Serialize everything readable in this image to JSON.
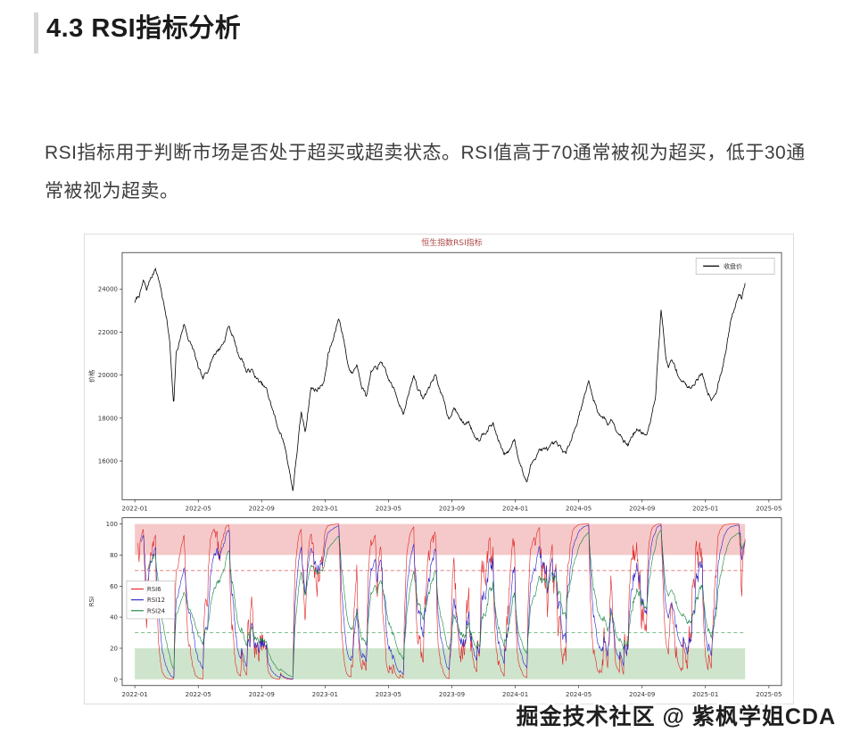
{
  "page": {
    "heading": "4.3 RSI指标分析",
    "paragraph": "RSI指标用于判断市场是否处于超买或超卖状态。RSI值高于70通常被视为超买，低于30通常被视为超卖。",
    "watermark": "掘金技术社区 @ 紫枫学姐CDA"
  },
  "chart_data": {
    "type": "line",
    "title": "恒生指数RSI指标",
    "title_color": "#b04848",
    "seed": 7,
    "noise_amp": 150,
    "xticks": [
      "2022-01",
      "2022-05",
      "2022-09",
      "2023-01",
      "2023-05",
      "2023-09",
      "2024-01",
      "2024-05",
      "2024-09",
      "2025-01",
      "2025-05"
    ],
    "xlim_months": [
      -0.8,
      40.8
    ],
    "panels": [
      {
        "name": "price",
        "ylabel": "价格",
        "ylim": [
          14200,
          25700
        ],
        "yticks": [
          16000,
          18000,
          20000,
          22000,
          24000
        ],
        "legend": [
          {
            "label": "收盘价",
            "color": "#000000"
          }
        ],
        "series": [
          {
            "name": "收盘价",
            "color": "#000000",
            "anchors": [
              [
                0,
                23400
              ],
              [
                0.3,
                23750
              ],
              [
                0.55,
                24350
              ],
              [
                0.75,
                23950
              ],
              [
                1.0,
                24550
              ],
              [
                1.3,
                24950
              ],
              [
                1.5,
                24500
              ],
              [
                1.75,
                23550
              ],
              [
                2.0,
                22750
              ],
              [
                2.2,
                21500
              ],
              [
                2.45,
                18450
              ],
              [
                2.6,
                20950
              ],
              [
                2.85,
                21650
              ],
              [
                3.1,
                22400
              ],
              [
                3.4,
                21650
              ],
              [
                3.7,
                21150
              ],
              [
                4.0,
                20300
              ],
              [
                4.3,
                19750
              ],
              [
                4.65,
                20350
              ],
              [
                5.0,
                21000
              ],
              [
                5.35,
                21250
              ],
              [
                5.65,
                21600
              ],
              [
                5.9,
                22300
              ],
              [
                6.2,
                21800
              ],
              [
                6.5,
                21000
              ],
              [
                6.8,
                20700
              ],
              [
                7.05,
                20150
              ],
              [
                7.35,
                20250
              ],
              [
                7.7,
                19800
              ],
              [
                8.0,
                19550
              ],
              [
                8.3,
                19300
              ],
              [
                8.6,
                18600
              ],
              [
                8.9,
                17850
              ],
              [
                9.2,
                17250
              ],
              [
                9.5,
                16600
              ],
              [
                9.8,
                15350
              ],
              [
                9.97,
                14650
              ],
              [
                10.2,
                16250
              ],
              [
                10.5,
                18200
              ],
              [
                10.75,
                17350
              ],
              [
                11.1,
                19400
              ],
              [
                11.5,
                19300
              ],
              [
                11.95,
                19750
              ],
              [
                12.2,
                21000
              ],
              [
                12.5,
                21600
              ],
              [
                12.87,
                22650
              ],
              [
                13.15,
                21800
              ],
              [
                13.45,
                20450
              ],
              [
                13.7,
                20100
              ],
              [
                14.0,
                20500
              ],
              [
                14.3,
                19650
              ],
              [
                14.6,
                19050
              ],
              [
                14.9,
                20100
              ],
              [
                15.25,
                20300
              ],
              [
                15.6,
                20600
              ],
              [
                15.9,
                19900
              ],
              [
                16.2,
                19550
              ],
              [
                16.55,
                18950
              ],
              [
                16.97,
                18250
              ],
              [
                17.3,
                19150
              ],
              [
                17.6,
                20000
              ],
              [
                17.9,
                19300
              ],
              [
                18.2,
                18900
              ],
              [
                18.55,
                19400
              ],
              [
                18.97,
                20050
              ],
              [
                19.3,
                19200
              ],
              [
                19.8,
                17980
              ],
              [
                20.1,
                18500
              ],
              [
                20.45,
                18100
              ],
              [
                20.75,
                17700
              ],
              [
                21.05,
                17850
              ],
              [
                21.4,
                17250
              ],
              [
                21.7,
                17050
              ],
              [
                22.0,
                17350
              ],
              [
                22.35,
                17600
              ],
              [
                22.6,
                17750
              ],
              [
                22.9,
                17050
              ],
              [
                23.3,
                16250
              ],
              [
                23.6,
                16450
              ],
              [
                23.95,
                17050
              ],
              [
                24.2,
                16200
              ],
              [
                24.5,
                15450
              ],
              [
                24.72,
                15000
              ],
              [
                24.95,
                15700
              ],
              [
                25.2,
                16100
              ],
              [
                25.5,
                16550
              ],
              [
                25.85,
                16500
              ],
              [
                26.2,
                16600
              ],
              [
                26.55,
                16750
              ],
              [
                26.9,
                16550
              ],
              [
                27.2,
                16300
              ],
              [
                27.55,
                17150
              ],
              [
                27.85,
                17700
              ],
              [
                28.15,
                18500
              ],
              [
                28.4,
                19150
              ],
              [
                28.63,
                19650
              ],
              [
                28.95,
                18850
              ],
              [
                29.25,
                18250
              ],
              [
                29.55,
                18050
              ],
              [
                29.85,
                17750
              ],
              [
                30.1,
                17950
              ],
              [
                30.45,
                17450
              ],
              [
                30.8,
                17100
              ],
              [
                31.1,
                16750
              ],
              [
                31.45,
                17300
              ],
              [
                31.7,
                17450
              ],
              [
                32.0,
                17350
              ],
              [
                32.3,
                17150
              ],
              [
                32.6,
                18000
              ],
              [
                32.85,
                19050
              ],
              [
                33.0,
                20900
              ],
              [
                33.2,
                23050
              ],
              [
                33.45,
                21200
              ],
              [
                33.65,
                20300
              ],
              [
                33.85,
                20650
              ],
              [
                34.1,
                20350
              ],
              [
                34.4,
                19850
              ],
              [
                34.65,
                19650
              ],
              [
                34.9,
                19400
              ],
              [
                35.2,
                19550
              ],
              [
                35.5,
                19900
              ],
              [
                35.8,
                20050
              ],
              [
                36.1,
                19300
              ],
              [
                36.4,
                18950
              ],
              [
                36.7,
                19300
              ],
              [
                37.0,
                20100
              ],
              [
                37.3,
                21100
              ],
              [
                37.6,
                22600
              ],
              [
                37.9,
                23300
              ],
              [
                38.1,
                23950
              ],
              [
                38.3,
                23600
              ],
              [
                38.5,
                24350
              ]
            ]
          }
        ]
      },
      {
        "name": "rsi",
        "ylabel": "RSI",
        "ylim": [
          -4,
          104
        ],
        "yticks": [
          0,
          20,
          40,
          60,
          80,
          100
        ],
        "overbought_level": 70,
        "oversold_level": 30,
        "bands": [
          {
            "from": 80,
            "to": 100,
            "color": "#f5c9c9"
          },
          {
            "from": 0,
            "to": 20,
            "color": "#cfe4cc"
          }
        ],
        "hlines": [
          {
            "y": 70,
            "color": "#dd5555"
          },
          {
            "y": 30,
            "color": "#55aa66"
          }
        ],
        "legend": [
          {
            "label": "RSI6",
            "color": "#e02222"
          },
          {
            "label": "RSI12",
            "color": "#2222cc"
          },
          {
            "label": "RSI24",
            "color": "#13813f"
          }
        ],
        "rsi_periods": [
          {
            "name": "RSI6",
            "period": 6,
            "color": "#e02222"
          },
          {
            "name": "RSI12",
            "period": 12,
            "color": "#2222cc"
          },
          {
            "name": "RSI24",
            "period": 24,
            "color": "#13813f"
          }
        ]
      }
    ]
  }
}
